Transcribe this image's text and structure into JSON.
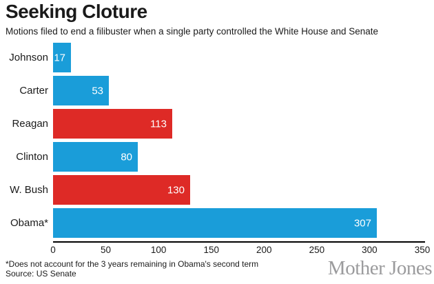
{
  "header": {
    "title": "Seeking Cloture",
    "subtitle": "Motions filed to end a filibuster when a single party controlled the White House and Senate"
  },
  "chart_data": {
    "type": "bar",
    "orientation": "horizontal",
    "title": "Seeking Cloture",
    "subtitle": "Motions filed to end a filibuster when a single party controlled the White House and Senate",
    "categories": [
      "Johnson",
      "Carter",
      "Reagan",
      "Clinton",
      "W. Bush",
      "Obama*"
    ],
    "values": [
      17,
      53,
      113,
      80,
      130,
      307
    ],
    "bar_colors": [
      "#1A9DD9",
      "#1A9DD9",
      "#DE2A26",
      "#1A9DD9",
      "#DE2A26",
      "#1A9DD9"
    ],
    "party_colors": {
      "democrat_blue": "#1A9DD9",
      "republican_red": "#DE2A26"
    },
    "value_label_color": "#FFFFFF",
    "xlim": [
      0,
      350
    ],
    "x_ticks": [
      0,
      50,
      100,
      150,
      200,
      250,
      300,
      350
    ],
    "grid": false,
    "legend": "none",
    "value_labels": "inside-end"
  },
  "footer": {
    "footnote": "*Does not account for the 3 years remaining in Obama's second term",
    "source": "Source: US Senate",
    "logo": "Mother Jones"
  }
}
